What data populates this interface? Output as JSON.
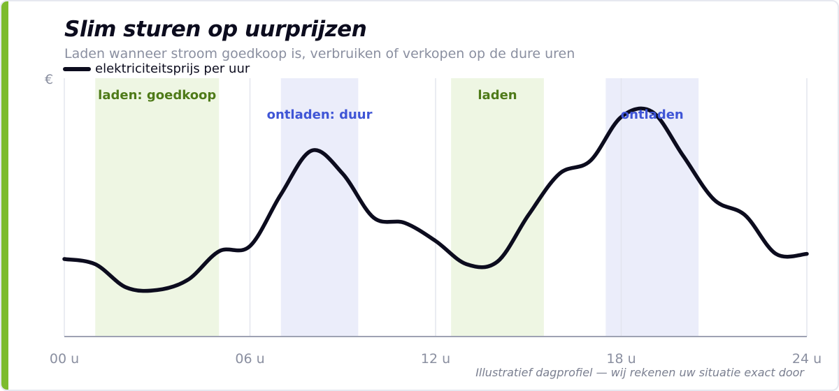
{
  "title": "Slim sturen op uurprijzen",
  "subtitle": "Laden wanneer stroom goedkoop is, verbruiken of verkopen op de dure uren",
  "footnote": "Illustratief dagprofiel — wij rekenen uw situatie exact door",
  "colors": {
    "accent": "#7dbb2e",
    "line": "#0c0c1e",
    "charge_band": "#eef6e3",
    "charge_text": "#4e7a18",
    "discharge_band": "#ebedfa",
    "discharge_text": "#3f55d6"
  },
  "chart_data": {
    "type": "line",
    "title": "Slim sturen op uurprijzen",
    "xlabel": "",
    "ylabel": "€",
    "xlim": [
      0,
      24
    ],
    "ylim": [
      0,
      100
    ],
    "x_ticks": [
      0,
      6,
      12,
      18,
      24
    ],
    "x_tick_labels": [
      "00 u",
      "06 u",
      "12 u",
      "18 u",
      "24 u"
    ],
    "legend": "top-left",
    "grid": "vertical",
    "series": [
      {
        "name": "elektriciteitsprijs per uur",
        "x": [
          0,
          1,
          2,
          3,
          4,
          5,
          6,
          7,
          8,
          9,
          10,
          11,
          12,
          13,
          14,
          15,
          16,
          17,
          18,
          19,
          20,
          21,
          22,
          23,
          24
        ],
        "y": [
          30,
          28,
          19,
          18,
          22,
          33,
          35,
          55,
          72,
          63,
          46,
          44,
          37,
          28,
          29,
          47,
          63,
          68,
          85,
          87,
          70,
          53,
          47,
          32,
          32
        ]
      }
    ],
    "bands": [
      {
        "label": "laden: goedkoop",
        "kind": "charge",
        "start": 1,
        "end": 5
      },
      {
        "label": "ontladen: duur",
        "kind": "discharge",
        "start": 7,
        "end": 9.5
      },
      {
        "label": "laden",
        "kind": "charge",
        "start": 12.5,
        "end": 15.5
      },
      {
        "label": "ontladen",
        "kind": "discharge",
        "start": 17.5,
        "end": 20.5
      }
    ]
  }
}
